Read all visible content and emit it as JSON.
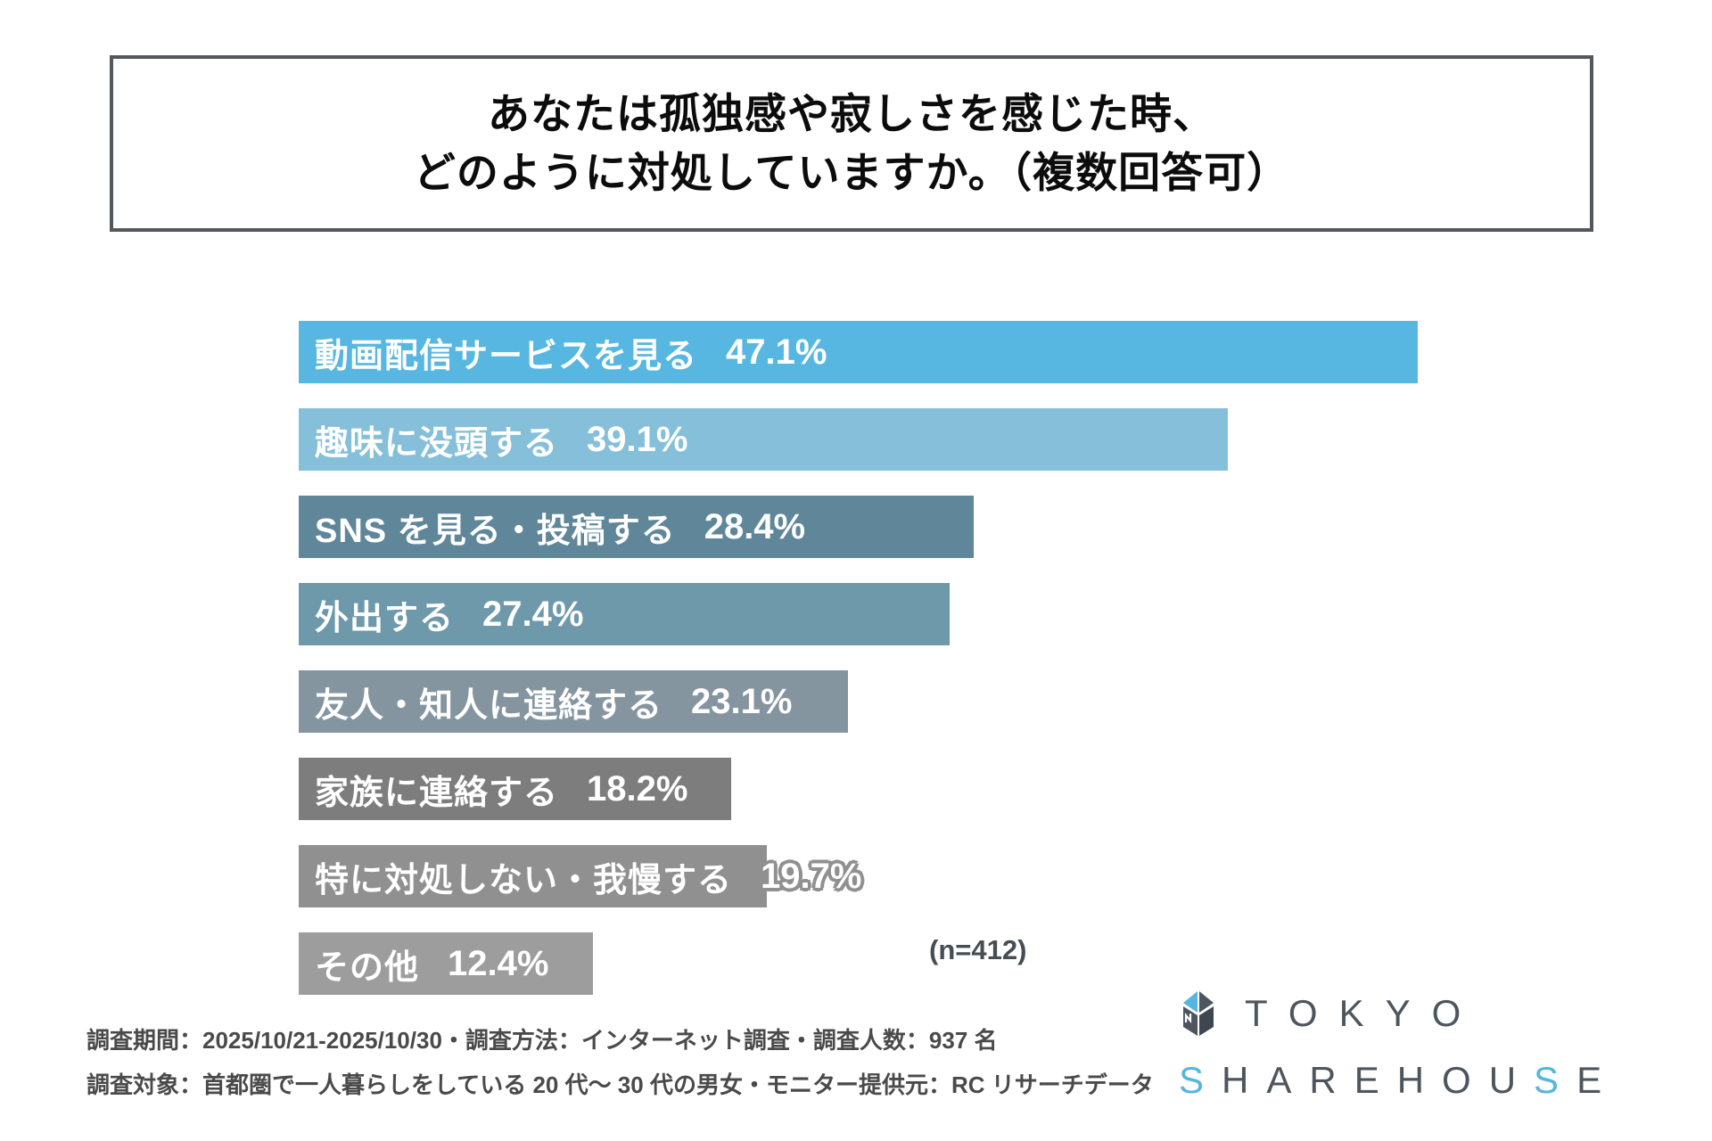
{
  "title": {
    "line1": "あなたは孤独感や寂しさを感じた時、",
    "line2": "どのように対処していますか。（複数回答可）"
  },
  "chart_data": {
    "type": "bar",
    "orientation": "horizontal",
    "title": "あなたは孤独感や寂しさを感じた時、どのように対処していますか。（複数回答可）",
    "categories": [
      "動画配信サービスを見る",
      "趣味に没頭する",
      "SNS を見る・投稿する",
      "外出する",
      "友人・知人に連絡する",
      "家族に連絡する",
      "特に対処しない・我慢する",
      "その他"
    ],
    "values": [
      47.1,
      39.1,
      28.4,
      27.4,
      23.1,
      18.2,
      19.7,
      12.4
    ],
    "unit": "%",
    "bar_colors": [
      "#57B7E1",
      "#85BFDA",
      "#60869A",
      "#6D99AB",
      "#8595A0",
      "#7D7D7D",
      "#909090",
      "#9D9D9D"
    ],
    "value_label_color": "#FFFFFF",
    "xlim": [
      0,
      50
    ],
    "grid": false,
    "legend": false,
    "sample_size_note": "(n=412)"
  },
  "footer": {
    "line1": "調査期間：2025/10/21-2025/10/30・調査方法：インターネット調査・調査人数：937 名",
    "line2": "調査対象：首都圏で一人暮らしをしている 20 代〜 30 代の男女・モニター提供元：RC リサーチデータ"
  },
  "logo": {
    "line1": "TOKYO",
    "line2_segments": [
      {
        "text": "S",
        "accent": true
      },
      {
        "text": "HAREHOU",
        "accent": false
      },
      {
        "text": "S",
        "accent": true
      },
      {
        "text": "E",
        "accent": false
      }
    ],
    "accent_color": "#56B6E0",
    "base_color": "#4D565E",
    "icon": "house-logo-icon"
  }
}
